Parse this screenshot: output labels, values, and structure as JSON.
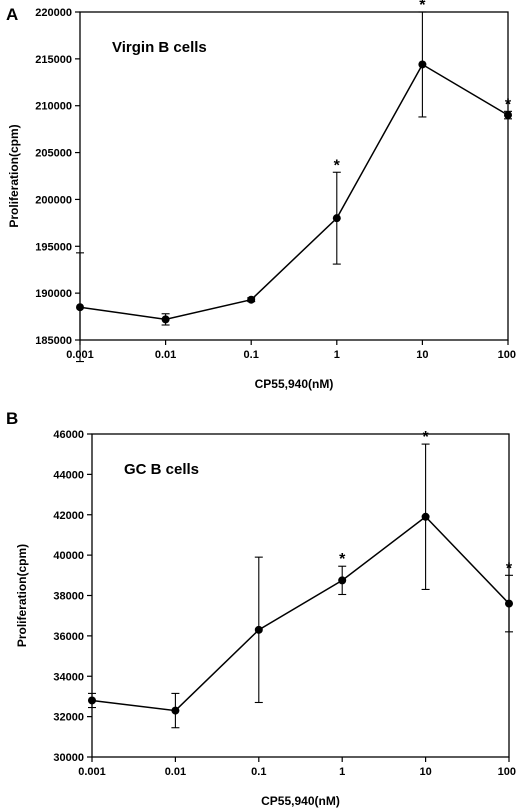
{
  "chart_data": [
    {
      "type": "line",
      "panel": "A",
      "title": "Virgin B cells",
      "xlabel": "CP55,940(nM)",
      "ylabel": "Proliferation(cpm)",
      "x_scale": "log",
      "x": [
        0.001,
        0.01,
        0.1,
        1,
        10,
        100
      ],
      "x_tick_labels": [
        "0.001",
        "0.01",
        "0.1",
        "1",
        "10",
        "100"
      ],
      "ylim": [
        185000,
        220000
      ],
      "y_ticks": [
        185000,
        190000,
        195000,
        200000,
        205000,
        210000,
        215000,
        220000
      ],
      "y_tick_labels": [
        "185000",
        "190000",
        "195000",
        "200000",
        "205000",
        "210000",
        "215000",
        "220000"
      ],
      "grid": false,
      "series": [
        {
          "values": [
            188500,
            187200,
            189300,
            198000,
            214400,
            209000
          ],
          "error": [
            5800,
            600,
            200,
            4900,
            5600,
            400
          ],
          "significant": [
            false,
            false,
            false,
            true,
            true,
            true
          ]
        }
      ],
      "significance_marker": "*"
    },
    {
      "type": "line",
      "panel": "B",
      "title": "GC B cells",
      "xlabel": "CP55,940(nM)",
      "ylabel": "Proliferation(cpm)",
      "x_scale": "log",
      "x": [
        0.001,
        0.01,
        0.1,
        1,
        10,
        100
      ],
      "x_tick_labels": [
        "0.001",
        "0.01",
        "0.1",
        "1",
        "10",
        "100"
      ],
      "ylim": [
        30000,
        46000
      ],
      "y_ticks": [
        30000,
        32000,
        34000,
        36000,
        38000,
        40000,
        42000,
        44000,
        46000
      ],
      "y_tick_labels": [
        "30000",
        "32000",
        "34000",
        "36000",
        "38000",
        "40000",
        "42000",
        "44000",
        "46000"
      ],
      "grid": false,
      "series": [
        {
          "values": [
            32800,
            32300,
            36300,
            38750,
            41900,
            37600
          ],
          "error": [
            350,
            850,
            3600,
            700,
            3600,
            1400
          ],
          "significant": [
            false,
            false,
            false,
            true,
            true,
            true
          ]
        }
      ],
      "significance_marker": "*"
    }
  ]
}
